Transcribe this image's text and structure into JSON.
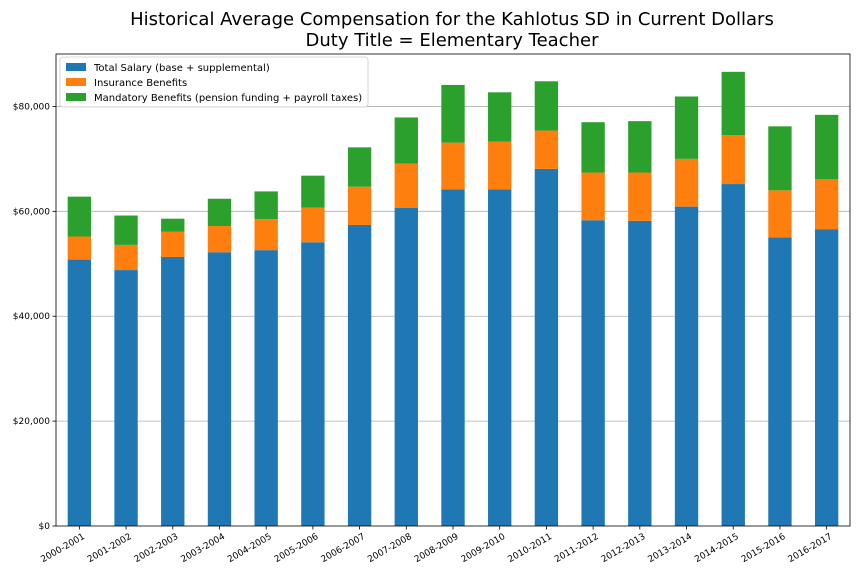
{
  "chart_data": {
    "type": "bar",
    "stacked": true,
    "title": "Historical Average Compensation for the Kahlotus SD in Current Dollars",
    "subtitle": "Duty Title = Elementary Teacher",
    "xlabel": "",
    "ylabel": "",
    "ylim": [
      0,
      90000
    ],
    "yticks": [
      0,
      20000,
      40000,
      60000,
      80000
    ],
    "ytick_labels": [
      "$0",
      "$20,000",
      "$40,000",
      "$60,000",
      "$80,000"
    ],
    "grid": "horizontal",
    "legend_position": "top-left",
    "categories": [
      "2000-2001",
      "2001-2002",
      "2002-2003",
      "2003-2004",
      "2004-2005",
      "2005-2006",
      "2006-2007",
      "2007-2008",
      "2008-2009",
      "2009-2010",
      "2010-2011",
      "2011-2012",
      "2012-2013",
      "2013-2014",
      "2014-2015",
      "2015-2016",
      "2016-2017"
    ],
    "series": [
      {
        "name": "Total Salary (base + supplemental)",
        "color": "#1f77b4",
        "values": [
          50800,
          48800,
          51300,
          52200,
          52600,
          54100,
          57400,
          60700,
          64200,
          64200,
          68100,
          58300,
          58200,
          60900,
          65200,
          55000,
          56600
        ]
      },
      {
        "name": "Insurance Benefits",
        "color": "#ff7f0e",
        "values": [
          4400,
          4800,
          4800,
          5000,
          5900,
          6600,
          7300,
          8400,
          8900,
          9100,
          7300,
          9100,
          9200,
          9100,
          9300,
          9000,
          9500
        ]
      },
      {
        "name": "Mandatory Benefits (pension funding + payroll taxes)",
        "color": "#2ca02c",
        "values": [
          7600,
          5600,
          2500,
          5200,
          5300,
          6100,
          7500,
          8800,
          11000,
          9400,
          9400,
          9600,
          9800,
          11900,
          12100,
          12200,
          12300
        ]
      }
    ]
  }
}
